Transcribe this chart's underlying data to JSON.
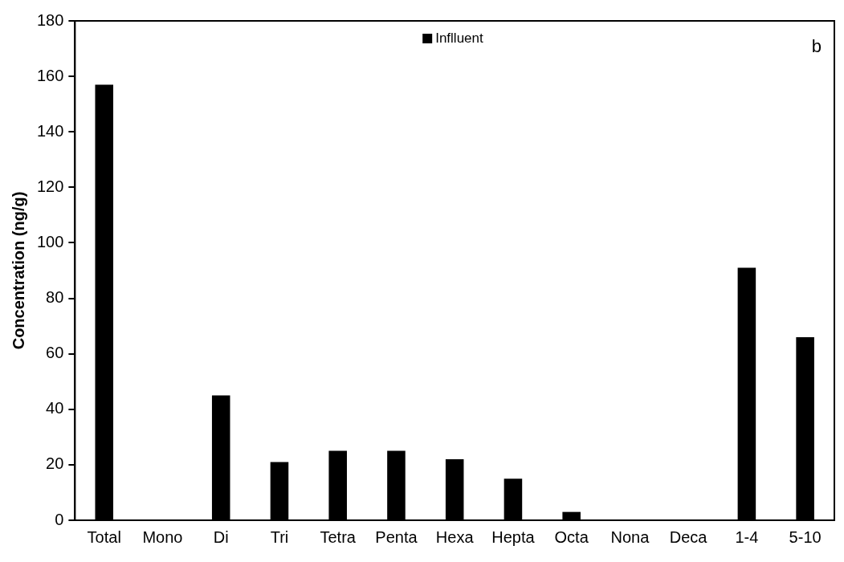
{
  "chart_data": {
    "type": "bar",
    "ylabel": "Concentration (ng/g)",
    "categories": [
      "Total",
      "Mono",
      "Di",
      "Tri",
      "Tetra",
      "Penta",
      "Hexa",
      "Hepta",
      "Octa",
      "Nona",
      "Deca",
      "1-4",
      "5-10"
    ],
    "series": [
      {
        "name": "Inflluent",
        "color": "#000000",
        "values": [
          157,
          0,
          45,
          21,
          25,
          25,
          22,
          15,
          3,
          0,
          0,
          91,
          66
        ]
      }
    ],
    "ylim": [
      0,
      180
    ],
    "yticks": [
      0,
      20,
      40,
      60,
      80,
      100,
      120,
      140,
      160,
      180
    ],
    "grid": false,
    "legend": "top",
    "annotations": [
      "b"
    ]
  }
}
